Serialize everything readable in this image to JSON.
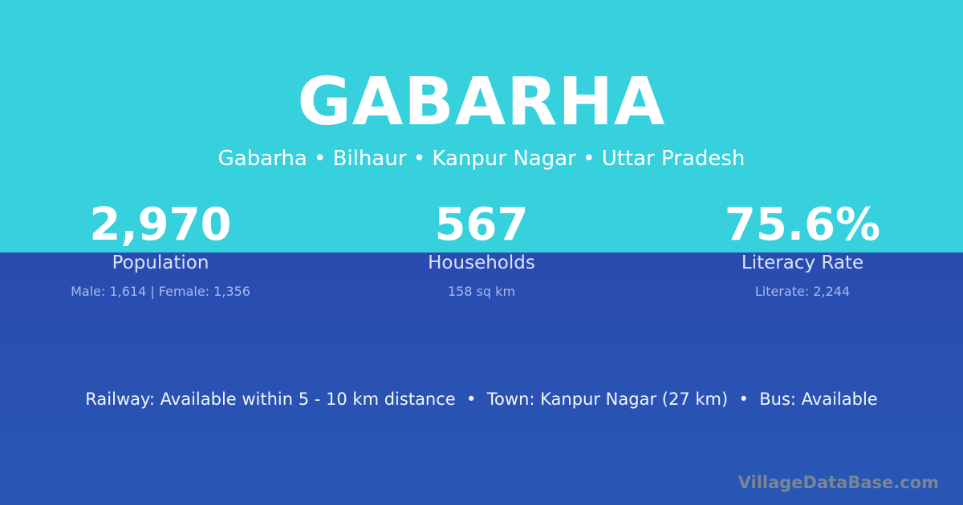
{
  "colors": {
    "top_band": "#37d1dd",
    "bottom_band": "#2857b4",
    "watermark": "#7a8597"
  },
  "title": "GABARHA",
  "breadcrumb": "Gabarha • Bilhaur • Kanpur Nagar • Uttar Pradesh",
  "stats": [
    {
      "value": "2,970",
      "label": "Population",
      "detail": "Male: 1,614 | Female: 1,356"
    },
    {
      "value": "567",
      "label": "Households",
      "detail": "158 sq km"
    },
    {
      "value": "75.6%",
      "label": "Literacy Rate",
      "detail": "Literate: 2,244"
    }
  ],
  "facts": "Railway: Available within 5 - 10 km distance  •  Town: Kanpur Nagar (27 km)  •  Bus: Available",
  "brand": "VillageDataBase.com"
}
